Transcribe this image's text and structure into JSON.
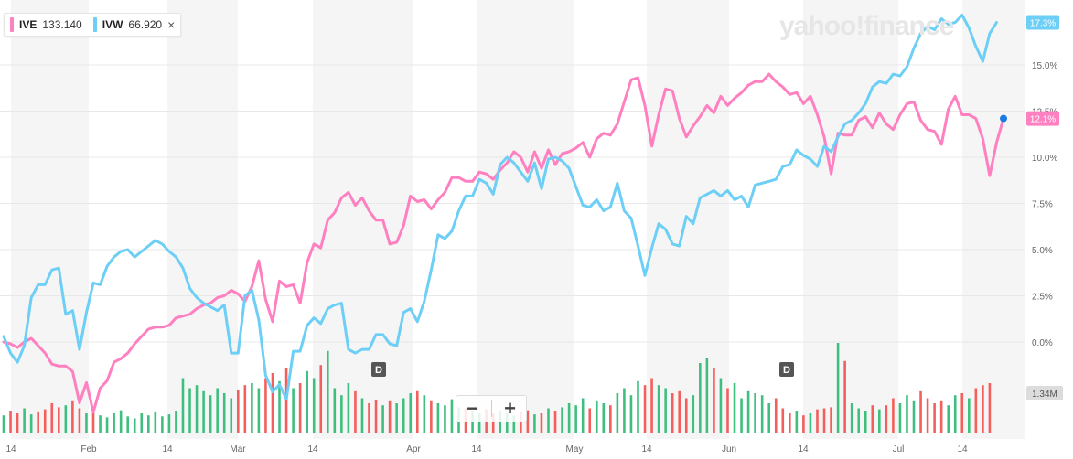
{
  "logo_text": "yahoo!finance",
  "legend": [
    {
      "symbol": "IVE",
      "value": "133.140",
      "color": "#ff80c0"
    },
    {
      "symbol": "IVW",
      "value": "66.920",
      "color": "#6dcff6"
    }
  ],
  "legend_close": "×",
  "zoom": {
    "minus": "−",
    "plus": "+"
  },
  "volume_label": "1.34M",
  "dividend_marker": "D",
  "chart_data": {
    "type": "line",
    "x_ticks": [
      "14",
      "Feb",
      "14",
      "Mar",
      "14",
      "Apr",
      "14",
      "May",
      "14",
      "Jun",
      "14",
      "Jul",
      "14"
    ],
    "y_ticks": [
      "15.0%",
      "12.5%",
      "10.0%",
      "7.5%",
      "5.0%",
      "2.5%",
      "0.0%"
    ],
    "ylim": [
      -2.9,
      17.3
    ],
    "series": [
      {
        "name": "IVE",
        "color": "#ff80c0",
        "last_label": "12.1%",
        "values": [
          0.0,
          -0.1,
          -0.3,
          0.0,
          0.2,
          -0.2,
          -0.6,
          -1.2,
          -1.3,
          -1.3,
          -1.6,
          -3.3,
          -2.2,
          -3.8,
          -2.5,
          -2.1,
          -1.1,
          -0.9,
          -0.6,
          -0.1,
          0.3,
          0.7,
          0.8,
          0.8,
          0.9,
          1.3,
          1.4,
          1.5,
          1.8,
          2.0,
          2.1,
          2.4,
          2.5,
          2.8,
          2.6,
          2.2,
          3.0,
          4.4,
          2.3,
          1.1,
          3.3,
          3.0,
          3.1,
          2.1,
          4.3,
          5.3,
          5.1,
          6.6,
          7.0,
          7.8,
          8.1,
          7.4,
          7.8,
          7.1,
          6.6,
          6.6,
          5.3,
          5.4,
          6.3,
          7.9,
          7.6,
          7.7,
          7.2,
          7.7,
          8.1,
          8.9,
          8.9,
          8.7,
          8.7,
          9.2,
          9.1,
          8.8,
          9.3,
          9.7,
          10.3,
          10.0,
          9.2,
          10.3,
          9.4,
          10.4,
          9.6,
          10.2,
          10.3,
          10.5,
          10.8,
          10.0,
          11.0,
          11.3,
          11.2,
          11.8,
          13.0,
          14.2,
          14.3,
          12.8,
          10.6,
          12.3,
          13.7,
          13.6,
          12.1,
          11.1,
          11.7,
          12.2,
          12.8,
          12.4,
          13.3,
          12.8,
          13.2,
          13.5,
          13.9,
          14.1,
          14.1,
          14.5,
          14.1,
          13.8,
          13.4,
          13.5,
          12.9,
          13.3,
          12.3,
          11.1,
          9.1,
          11.3,
          11.2,
          11.2,
          12.0,
          12.2,
          11.6,
          12.4,
          11.8,
          11.5,
          12.3,
          12.9,
          13.0,
          12.0,
          11.5,
          11.4,
          10.7,
          12.6,
          13.3,
          12.3,
          12.3,
          12.1,
          11.0,
          9.0,
          10.8,
          12.1
        ]
      },
      {
        "name": "IVW",
        "color": "#6dcff6",
        "last_label": "17.3%",
        "values": [
          0.3,
          -0.6,
          -1.1,
          -0.2,
          2.4,
          3.1,
          3.1,
          3.9,
          4.0,
          1.5,
          1.7,
          -0.4,
          1.6,
          3.2,
          3.1,
          4.1,
          4.6,
          4.9,
          5.0,
          4.6,
          4.9,
          5.2,
          5.5,
          5.3,
          4.9,
          4.6,
          4.0,
          2.9,
          2.4,
          2.1,
          1.9,
          1.7,
          2.0,
          -0.6,
          -0.6,
          2.5,
          2.8,
          1.2,
          -1.8,
          -2.7,
          -2.3,
          -3.1,
          -0.5,
          -0.5,
          0.9,
          1.3,
          1.0,
          1.8,
          2.0,
          2.1,
          -0.4,
          -0.6,
          -0.4,
          -0.4,
          0.4,
          0.4,
          -0.1,
          -0.2,
          1.6,
          1.8,
          1.1,
          2.2,
          3.9,
          5.8,
          5.6,
          6.0,
          7.1,
          7.9,
          7.9,
          8.8,
          8.6,
          8.0,
          9.6,
          10.0,
          9.7,
          9.2,
          8.7,
          9.7,
          8.3,
          9.9,
          10.0,
          9.8,
          9.4,
          8.4,
          7.4,
          7.3,
          7.7,
          7.1,
          7.3,
          8.6,
          7.1,
          6.7,
          5.2,
          3.6,
          5.1,
          6.4,
          6.1,
          5.3,
          5.2,
          6.8,
          6.4,
          7.8,
          8.0,
          8.2,
          7.9,
          8.2,
          7.7,
          7.9,
          7.3,
          8.5,
          8.6,
          8.7,
          8.8,
          9.5,
          9.6,
          10.4,
          10.1,
          9.9,
          9.5,
          10.6,
          10.3,
          11.1,
          11.8,
          12.0,
          12.4,
          12.9,
          13.8,
          14.1,
          14.0,
          14.5,
          14.4,
          14.9,
          15.9,
          16.7,
          17.1,
          16.9,
          17.5,
          17.2,
          17.3,
          17.7,
          17.0,
          16.0,
          15.2,
          16.7,
          17.3
        ]
      }
    ],
    "volume": {
      "label": "1.34M",
      "values": [
        0.18,
        0.22,
        0.2,
        0.25,
        0.19,
        0.21,
        0.24,
        0.3,
        0.26,
        0.28,
        0.32,
        0.25,
        0.2,
        0.22,
        0.18,
        0.16,
        0.2,
        0.23,
        0.17,
        0.15,
        0.2,
        0.18,
        0.21,
        0.17,
        0.19,
        0.22,
        0.55,
        0.45,
        0.48,
        0.42,
        0.38,
        0.45,
        0.4,
        0.35,
        0.43,
        0.48,
        0.5,
        0.45,
        0.55,
        0.6,
        0.52,
        0.65,
        0.45,
        0.5,
        0.62,
        0.55,
        0.68,
        0.82,
        0.45,
        0.38,
        0.5,
        0.42,
        0.35,
        0.3,
        0.33,
        0.28,
        0.32,
        0.3,
        0.35,
        0.4,
        0.42,
        0.38,
        0.32,
        0.3,
        0.28,
        0.34,
        0.26,
        0.25,
        0.22,
        0.2,
        0.24,
        0.2,
        0.22,
        0.2,
        0.18,
        0.21,
        0.23,
        0.19,
        0.2,
        0.25,
        0.22,
        0.26,
        0.3,
        0.28,
        0.35,
        0.25,
        0.32,
        0.3,
        0.28,
        0.4,
        0.45,
        0.38,
        0.52,
        0.48,
        0.55,
        0.48,
        0.45,
        0.4,
        0.42,
        0.35,
        0.38,
        0.7,
        0.75,
        0.65,
        0.55,
        0.45,
        0.5,
        0.35,
        0.42,
        0.4,
        0.38,
        0.3,
        0.35,
        0.25,
        0.2,
        0.22,
        0.18,
        0.2,
        0.24,
        0.25,
        0.26,
        0.9,
        0.72,
        0.3,
        0.25,
        0.22,
        0.28,
        0.24,
        0.28,
        0.35,
        0.3,
        0.38,
        0.32,
        0.42,
        0.35,
        0.3,
        0.32,
        0.28,
        0.38,
        0.4,
        0.35,
        0.45,
        0.48,
        0.5
      ]
    }
  }
}
